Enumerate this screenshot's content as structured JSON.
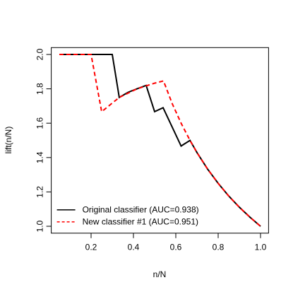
{
  "chart_data": {
    "type": "line",
    "xlabel": "n/N",
    "ylabel": "lift(n/N)",
    "xlim": [
      0.012,
      1.038
    ],
    "ylim": [
      0.96,
      2.04
    ],
    "xticks": [
      0.2,
      0.4,
      0.6,
      0.8,
      {
        "value": 1,
        "label": "1.0"
      }
    ],
    "yticks": [
      {
        "value": 1,
        "label": "1.0"
      },
      1.2,
      1.4,
      1.6,
      1.8,
      {
        "value": 2,
        "label": "2.0"
      }
    ],
    "legend": "bottom-left",
    "series": [
      {
        "name": "Original classifier (AUC=0.938)",
        "color": "#000000",
        "line_style": "solid",
        "x": [
          0.05,
          0.3,
          0.333,
          0.375,
          0.417,
          0.46,
          0.5,
          0.54,
          0.625,
          0.667,
          0.7,
          0.75,
          0.8,
          0.85,
          0.9,
          0.95,
          1.0
        ],
        "values": [
          2,
          2,
          1.75,
          1.78,
          1.8,
          1.82,
          1.667,
          1.69,
          1.467,
          1.5,
          1.429,
          1.333,
          1.25,
          1.176,
          1.111,
          1.053,
          1.0
        ]
      },
      {
        "name": "New classifier #1 (AUC=0.951)",
        "color": "#ff0000",
        "line_style": "dashed",
        "x": [
          0.05,
          0.2,
          0.25,
          0.333,
          0.417,
          0.5,
          0.542,
          0.583,
          0.625,
          0.667,
          0.7,
          0.75,
          0.8,
          0.85,
          0.9,
          0.95,
          1.0
        ],
        "values": [
          2,
          2,
          1.667,
          1.75,
          1.8,
          1.833,
          1.846,
          1.714,
          1.6,
          1.5,
          1.429,
          1.333,
          1.25,
          1.176,
          1.111,
          1.053,
          1.0
        ]
      }
    ]
  }
}
